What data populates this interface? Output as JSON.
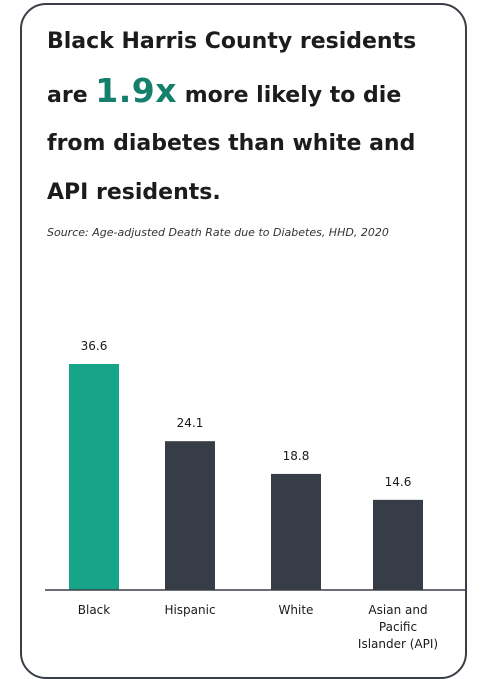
{
  "headline": {
    "line1": "Black Harris County residents",
    "pre": "are ",
    "accent": "1.9x",
    "post": " more likely to die",
    "line3": "from diabetes than white and",
    "line4": "API residents."
  },
  "source": "Source: Age-adjusted Death Rate due to Diabetes, HHD, 2020",
  "colors": {
    "black_bar": "#17a589",
    "other_bar": "#363d47",
    "accent_text": "#14806c",
    "border": "#3a3f47"
  },
  "chart_data": {
    "type": "bar",
    "categories": [
      "Black",
      "Hispanic",
      "White",
      "Asian and Pacific Islander (API)"
    ],
    "category_lines": [
      [
        "Black"
      ],
      [
        "Hispanic"
      ],
      [
        "White"
      ],
      [
        "Asian and",
        "Pacific",
        "Islander (API)"
      ]
    ],
    "values": [
      36.6,
      24.1,
      18.8,
      14.6
    ],
    "value_labels": [
      "36.6",
      "24.1",
      "18.8",
      "14.6"
    ],
    "bar_colors": [
      "#17a589",
      "#363d47",
      "#363d47",
      "#363d47"
    ],
    "title": "",
    "xlabel": "",
    "ylabel": "",
    "ylim": [
      0,
      36.6
    ],
    "grid": false,
    "legend": "none"
  }
}
